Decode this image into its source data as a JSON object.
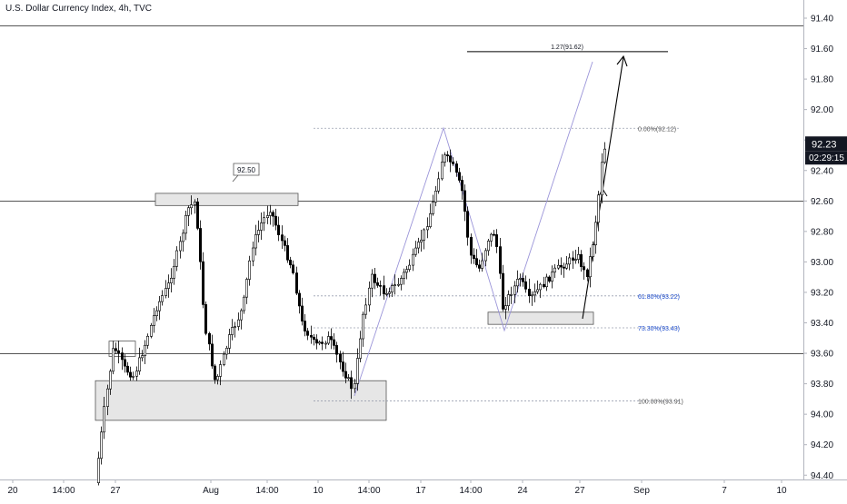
{
  "header": {
    "title": "U.S. Dollar Currency Index, 4h, TVC"
  },
  "price_badge": {
    "price": "92.23",
    "countdown": "02:29:15"
  },
  "colors": {
    "candle": "#000000",
    "zone_fill": "#e6e6e6",
    "zone_stroke": "#555555",
    "fib_text": "#1848cc",
    "fib_line": "#9aa0b0",
    "swing_line": "#9b95d9",
    "price_badge_bg": "#131722"
  },
  "chart_data": {
    "type": "candlestick",
    "y_axis": {
      "position": "right",
      "inverted": true,
      "range": [
        91.34,
        94.5
      ],
      "tick_labels": [
        "91.40",
        "91.60",
        "91.80",
        "92.00",
        "92.20",
        "92.40",
        "92.60",
        "92.80",
        "93.00",
        "93.20",
        "93.40",
        "93.60",
        "93.80",
        "94.00",
        "94.20",
        "94.40"
      ]
    },
    "x_axis": {
      "tick_labels": [
        "20",
        "14:00",
        "27",
        "Aug",
        "14:00",
        "10",
        "14:00",
        "17",
        "14:00",
        "24",
        "27",
        "Sep",
        "7",
        "10"
      ]
    },
    "horizontal_lines": [
      91.45,
      92.6,
      93.6
    ],
    "zones": [
      {
        "label": "92.50",
        "top": 92.55,
        "bottom": 92.63
      },
      {
        "top": 93.78,
        "bottom": 94.04
      },
      {
        "top": 93.33,
        "bottom": 93.41
      },
      {
        "top": 93.52,
        "bottom": 93.62
      }
    ],
    "fibonacci": [
      {
        "label": "0.00%(92.12)",
        "price": 92.12
      },
      {
        "label": "61.80%(93.22)",
        "price": 93.22
      },
      {
        "label": "73.30%(93.43)",
        "price": 93.43
      },
      {
        "label": "100.00%(93.91)",
        "price": 93.91
      }
    ],
    "extension": {
      "label": "1.27(91.62)",
      "price": 91.62
    },
    "last_price": 92.23,
    "candles": []
  }
}
